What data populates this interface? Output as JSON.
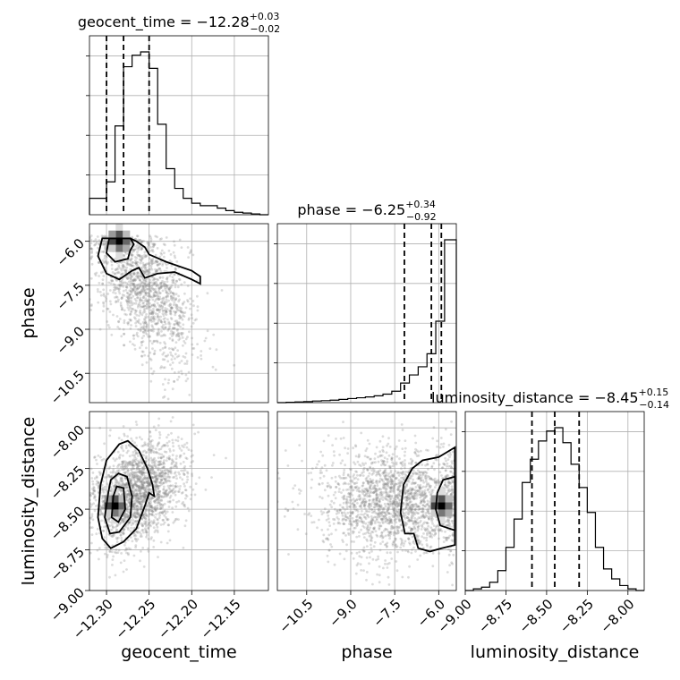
{
  "chart_data": {
    "type": "corner",
    "parameters": [
      {
        "name": "geocent_time",
        "label": "geocent_time",
        "title": "geocent_time = ",
        "median": "−12.28",
        "plus": "+0.03",
        "minus": "−0.02",
        "range": [
          -12.32,
          -12.11
        ],
        "ticks": [
          -12.3,
          -12.25,
          -12.2,
          -12.15
        ],
        "tick_labels": [
          "−12.30",
          "−12.25",
          "−12.20",
          "−12.15"
        ],
        "quantiles": [
          -12.3,
          -12.28,
          -12.25
        ],
        "hist_edges": [
          -12.32,
          -12.3,
          -12.29,
          -12.28,
          -12.27,
          -12.26,
          -12.25,
          -12.24,
          -12.23,
          -12.22,
          -12.21,
          -12.2,
          -12.19,
          -12.18,
          -12.17,
          -12.16,
          -12.15,
          -12.14,
          -12.13,
          -12.12,
          -12.11
        ],
        "hist_counts": [
          0.1,
          0.2,
          0.54,
          0.9,
          0.97,
          0.99,
          0.89,
          0.55,
          0.28,
          0.16,
          0.1,
          0.07,
          0.055,
          0.055,
          0.04,
          0.025,
          0.015,
          0.01,
          0.005,
          0.0
        ]
      },
      {
        "name": "phase",
        "label": "phase",
        "title": "phase = ",
        "median": "−6.25",
        "plus": "+0.34",
        "minus": "−0.92",
        "range": [
          -11.5,
          -5.4
        ],
        "ticks": [
          -10.5,
          -9.0,
          -7.5,
          -6.0
        ],
        "tick_labels": [
          "−10.5",
          "−9.0",
          "−7.5",
          "−6.0"
        ],
        "quantiles": [
          -7.17,
          -6.25,
          -5.91
        ],
        "hist_edges": [
          -11.5,
          -11.2,
          -10.9,
          -10.6,
          -10.3,
          -10.0,
          -9.7,
          -9.4,
          -9.1,
          -8.8,
          -8.5,
          -8.2,
          -7.9,
          -7.6,
          -7.3,
          -7.0,
          -6.7,
          -6.4,
          -6.1,
          -5.8,
          -5.4
        ],
        "hist_counts": [
          0.0,
          0.002,
          0.004,
          0.006,
          0.01,
          0.012,
          0.015,
          0.02,
          0.025,
          0.03,
          0.035,
          0.042,
          0.052,
          0.07,
          0.12,
          0.17,
          0.22,
          0.3,
          0.5,
          1.0
        ]
      },
      {
        "name": "luminosity_distance",
        "label": "luminosity_distance",
        "title": "luminosity_distance = ",
        "median": "−8.45",
        "plus": "+0.15",
        "minus": "−0.14",
        "range": [
          -9.0,
          -7.9
        ],
        "ticks": [
          -9.0,
          -8.75,
          -8.5,
          -8.25,
          -8.0
        ],
        "tick_labels": [
          "−9.00",
          "−8.75",
          "−8.50",
          "−8.25",
          "−8.00"
        ],
        "quantiles": [
          -8.59,
          -8.45,
          -8.3
        ],
        "hist_edges": [
          -9.0,
          -8.95,
          -8.9,
          -8.85,
          -8.8,
          -8.75,
          -8.7,
          -8.65,
          -8.6,
          -8.55,
          -8.5,
          -8.45,
          -8.4,
          -8.35,
          -8.3,
          -8.25,
          -8.2,
          -8.15,
          -8.1,
          -8.05,
          -8.0,
          -7.95,
          -7.9
        ],
        "hist_counts": [
          0.0,
          0.01,
          0.02,
          0.05,
          0.12,
          0.26,
          0.43,
          0.65,
          0.79,
          0.9,
          0.96,
          0.98,
          0.89,
          0.76,
          0.62,
          0.47,
          0.26,
          0.13,
          0.07,
          0.03,
          0.01,
          0.0
        ]
      }
    ],
    "pairs": [
      {
        "x": "geocent_time",
        "y": "phase",
        "mean": [
          -12.255,
          -7.6
        ],
        "std": [
          0.03,
          1.3
        ],
        "corr": -0.55,
        "n_points": 1500,
        "peak": [
          -12.285,
          -6.0
        ],
        "contours": [
          [
            [
              -12.305,
              -5.9
            ],
            [
              -12.31,
              -6.5
            ],
            [
              -12.3,
              -7.1
            ],
            [
              -12.285,
              -7.3
            ],
            [
              -12.27,
              -7.0
            ],
            [
              -12.262,
              -6.9
            ],
            [
              -12.255,
              -7.25
            ],
            [
              -12.24,
              -7.1
            ],
            [
              -12.22,
              -7.05
            ],
            [
              -12.2,
              -7.3
            ],
            [
              -12.19,
              -7.45
            ],
            [
              -12.19,
              -7.2
            ],
            [
              -12.2,
              -7.0
            ],
            [
              -12.23,
              -6.7
            ],
            [
              -12.25,
              -6.45
            ],
            [
              -12.255,
              -6.2
            ],
            [
              -12.265,
              -6.0
            ],
            [
              -12.272,
              -5.9
            ]
          ],
          [
            [
              -12.297,
              -5.9
            ],
            [
              -12.3,
              -6.4
            ],
            [
              -12.29,
              -6.7
            ],
            [
              -12.275,
              -6.6
            ],
            [
              -12.272,
              -6.3
            ],
            [
              -12.268,
              -6.1
            ],
            [
              -12.272,
              -5.9
            ]
          ]
        ]
      },
      {
        "x": "geocent_time",
        "y": "luminosity_distance",
        "mean": [
          -12.265,
          -8.4
        ],
        "std": [
          0.028,
          0.16
        ],
        "corr": 0.3,
        "n_points": 2000,
        "peak": [
          -12.29,
          -8.48
        ],
        "contours": [
          [
            [
              -12.307,
              -8.35
            ],
            [
              -12.31,
              -8.55
            ],
            [
              -12.305,
              -8.68
            ],
            [
              -12.295,
              -8.74
            ],
            [
              -12.28,
              -8.7
            ],
            [
              -12.265,
              -8.62
            ],
            [
              -12.255,
              -8.48
            ],
            [
              -12.25,
              -8.4
            ],
            [
              -12.244,
              -8.42
            ],
            [
              -12.246,
              -8.35
            ],
            [
              -12.252,
              -8.25
            ],
            [
              -12.262,
              -8.14
            ],
            [
              -12.275,
              -8.08
            ],
            [
              -12.285,
              -8.1
            ],
            [
              -12.3,
              -8.2
            ]
          ],
          [
            [
              -12.298,
              -8.4
            ],
            [
              -12.302,
              -8.55
            ],
            [
              -12.296,
              -8.65
            ],
            [
              -12.285,
              -8.64
            ],
            [
              -12.272,
              -8.55
            ],
            [
              -12.27,
              -8.42
            ],
            [
              -12.276,
              -8.3
            ],
            [
              -12.286,
              -8.28
            ],
            [
              -12.295,
              -8.32
            ]
          ],
          [
            [
              -12.292,
              -8.42
            ],
            [
              -12.294,
              -8.55
            ],
            [
              -12.286,
              -8.58
            ],
            [
              -12.278,
              -8.5
            ],
            [
              -12.28,
              -8.37
            ],
            [
              -12.288,
              -8.36
            ]
          ]
        ]
      },
      {
        "x": "phase",
        "y": "luminosity_distance",
        "mean": [
          -7.5,
          -8.45
        ],
        "std": [
          1.3,
          0.16
        ],
        "corr": 0.0,
        "n_points": 2000,
        "peak": [
          -5.9,
          -8.48
        ],
        "contours": [
          [
            [
              -5.45,
              -8.12
            ],
            [
              -6.0,
              -8.18
            ],
            [
              -6.55,
              -8.2
            ],
            [
              -6.9,
              -8.25
            ],
            [
              -7.2,
              -8.35
            ],
            [
              -7.3,
              -8.52
            ],
            [
              -7.15,
              -8.65
            ],
            [
              -6.85,
              -8.65
            ],
            [
              -6.7,
              -8.74
            ],
            [
              -6.3,
              -8.76
            ],
            [
              -5.9,
              -8.74
            ],
            [
              -5.45,
              -8.72
            ]
          ],
          [
            [
              -5.45,
              -8.3
            ],
            [
              -5.85,
              -8.32
            ],
            [
              -6.05,
              -8.4
            ],
            [
              -6.1,
              -8.5
            ],
            [
              -5.95,
              -8.6
            ],
            [
              -5.45,
              -8.63
            ]
          ]
        ]
      }
    ],
    "ylim": [
      -1,
      1
    ]
  }
}
